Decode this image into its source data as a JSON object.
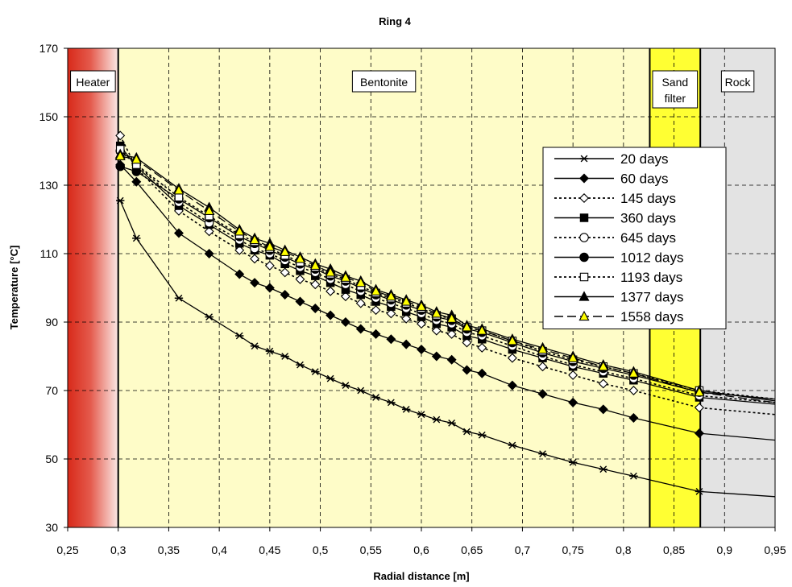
{
  "chart_data": {
    "type": "line",
    "title": "Ring 4",
    "xlabel": "Radial distance [m]",
    "ylabel": "Temperature [°C]",
    "xlim": [
      0.25,
      0.95
    ],
    "ylim": [
      30,
      170
    ],
    "xticks": [
      0.25,
      0.3,
      0.35,
      0.4,
      0.45,
      0.5,
      0.55,
      0.6,
      0.65,
      0.7,
      0.75,
      0.8,
      0.85,
      0.9,
      0.95
    ],
    "xtick_labels": [
      "0,25",
      "0,3",
      "0,35",
      "0,4",
      "0,45",
      "0,5",
      "0,55",
      "0,6",
      "0,65",
      "0,7",
      "0,75",
      "0,8",
      "0,85",
      "0,9",
      "0,95"
    ],
    "yticks": [
      30,
      50,
      70,
      90,
      110,
      130,
      150,
      170
    ],
    "ytick_labels": [
      "30",
      "50",
      "70",
      "90",
      "110",
      "130",
      "150",
      "170"
    ],
    "grid": true,
    "legend_position": "right",
    "zones": [
      {
        "label": "Heater",
        "from": 0.25,
        "to": 0.3,
        "color": "#d92b1c"
      },
      {
        "label": "Bentonite",
        "from": 0.3,
        "to": 0.826,
        "color": "#fefcc8"
      },
      {
        "label": "Sand filter",
        "label_lines": [
          "Sand",
          "filter"
        ],
        "from": 0.826,
        "to": 0.876,
        "color": "#ffff33"
      },
      {
        "label": "Rock",
        "from": 0.876,
        "to": 0.95,
        "color": "#e3e3e3"
      }
    ],
    "x": [
      0.302,
      0.318,
      0.36,
      0.39,
      0.42,
      0.435,
      0.45,
      0.465,
      0.48,
      0.495,
      0.51,
      0.525,
      0.54,
      0.555,
      0.57,
      0.585,
      0.6,
      0.615,
      0.63,
      0.645,
      0.66,
      0.69,
      0.72,
      0.75,
      0.78,
      0.81,
      0.875,
      0.95
    ],
    "series": [
      {
        "name": "20 days",
        "marker": "star",
        "dash": "solid",
        "values": [
          125.5,
          114.5,
          97,
          91.5,
          86,
          83,
          81.5,
          80,
          77.5,
          75.5,
          73.5,
          71.5,
          70,
          68,
          66.5,
          64.5,
          63,
          61.5,
          60.5,
          58,
          57,
          54,
          51.5,
          49,
          47,
          45,
          40.5,
          39
        ]
      },
      {
        "name": "60  days",
        "marker": "diamond",
        "dash": "solid",
        "values": [
          136,
          131,
          116,
          110,
          104,
          101.5,
          100,
          98,
          96,
          94,
          92,
          90,
          88,
          86.5,
          85,
          83.5,
          82,
          80,
          79,
          76,
          75,
          71.5,
          69,
          66.5,
          64.5,
          62,
          57.5,
          55.5
        ]
      },
      {
        "name": "145 days",
        "marker": "diamond-open",
        "dash": "dot",
        "values": [
          144.5,
          135,
          122.5,
          116.5,
          111,
          108.5,
          106.5,
          104.5,
          102.5,
          101,
          99,
          97.5,
          95.5,
          93.5,
          92.5,
          91,
          89.5,
          87.5,
          86.5,
          84,
          82.5,
          79.5,
          77,
          74.5,
          72,
          70,
          65,
          63
        ]
      },
      {
        "name": "360 days",
        "marker": "square",
        "dash": "solid",
        "values": [
          141.5,
          135.5,
          124,
          118.5,
          113,
          111,
          109.5,
          107,
          105,
          103.5,
          101.5,
          99.5,
          98,
          96,
          94.5,
          93,
          91.5,
          89.5,
          88.5,
          86,
          85,
          82,
          79.5,
          77,
          75,
          73,
          68,
          66
        ]
      },
      {
        "name": "645 days",
        "marker": "circle-open",
        "dash": "dot",
        "values": [
          140,
          136,
          125,
          119,
          114,
          111.5,
          110,
          108,
          106,
          104.5,
          102.5,
          101,
          99,
          97,
          95.5,
          94,
          92.5,
          90.5,
          89.5,
          87,
          86,
          83,
          80,
          77.5,
          75.5,
          73.5,
          68.5,
          66.5
        ]
      },
      {
        "name": "1012 days",
        "marker": "circle",
        "dash": "solid",
        "values": [
          135.5,
          134,
          126,
          120.5,
          115,
          113,
          111,
          109,
          107,
          105.5,
          103.5,
          102,
          100,
          98,
          96.5,
          95,
          93.5,
          91.5,
          90.5,
          88,
          87,
          84,
          81,
          78.5,
          76.5,
          74.5,
          69.5,
          67.5
        ]
      },
      {
        "name": "1193 days",
        "marker": "square-open",
        "dash": "dot",
        "values": [
          140.5,
          136,
          126.5,
          121,
          115.5,
          113.5,
          111.5,
          109.5,
          107.5,
          106,
          104,
          102.5,
          100.5,
          98.5,
          97,
          95.5,
          94,
          92,
          91,
          88.5,
          87.5,
          84.5,
          81.5,
          79,
          77,
          75,
          70,
          67.5
        ]
      },
      {
        "name": "1377 days",
        "marker": "triangle",
        "dash": "solid",
        "values": [
          139,
          138,
          129,
          123.5,
          117,
          114.5,
          113,
          111,
          109,
          107,
          105.5,
          103.5,
          102,
          99.5,
          98,
          96.5,
          95,
          93,
          92,
          89,
          88,
          85,
          82.5,
          80,
          77.5,
          75.5,
          70,
          67
        ]
      },
      {
        "name": "1558 days",
        "marker": "triangle-yellow",
        "dash": "longdash",
        "values": [
          138.5,
          137.5,
          128.5,
          122.5,
          116.5,
          114,
          112,
          110.5,
          108.5,
          106.5,
          104.5,
          103,
          101.5,
          99,
          97.5,
          96,
          94.5,
          92.5,
          91,
          88.5,
          87.5,
          84.5,
          82,
          79.5,
          77,
          75,
          69.5,
          66.5
        ]
      }
    ]
  }
}
